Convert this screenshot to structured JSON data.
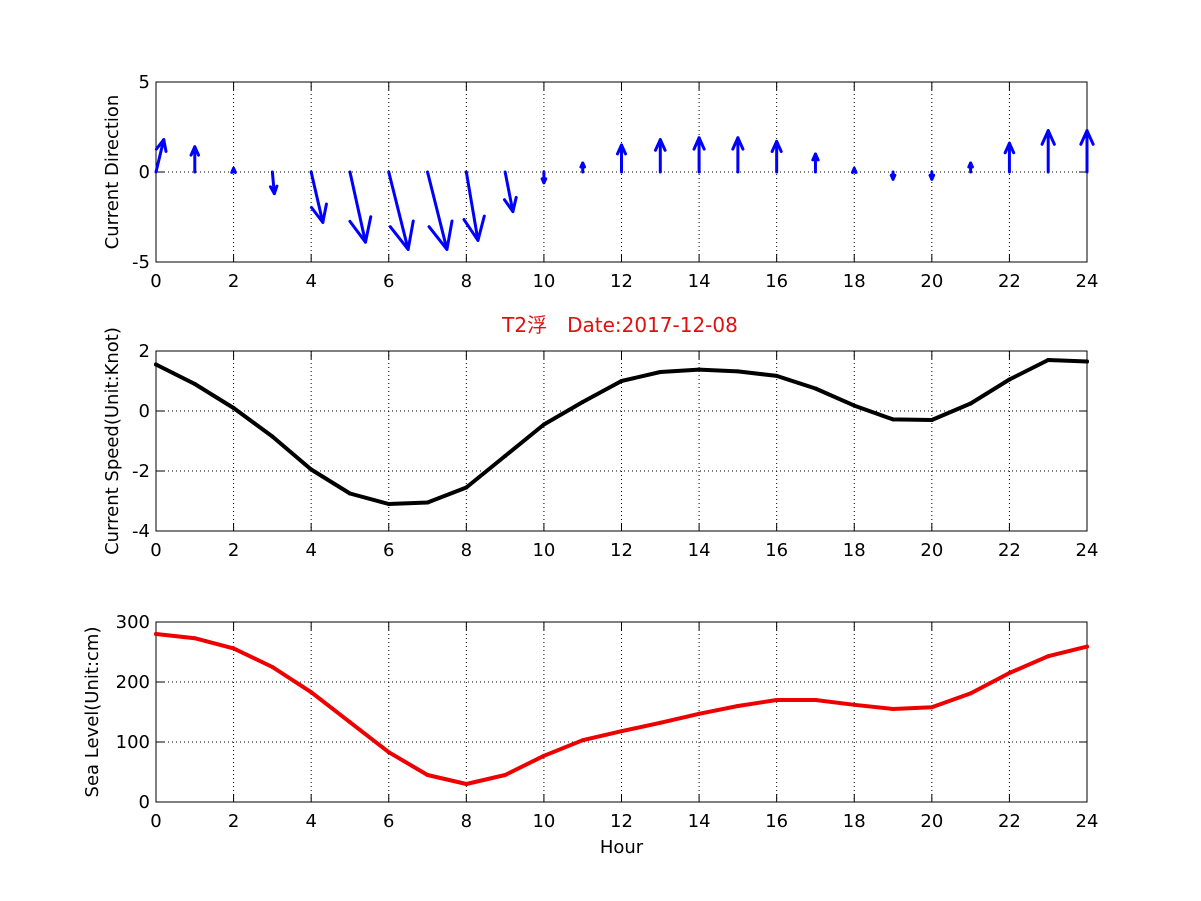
{
  "figure": {
    "title": "T2浮　Date:2017-12-08",
    "title_color": "#e01010"
  },
  "chart_data": [
    {
      "type": "quiver",
      "title": "",
      "xlabel": "",
      "ylabel": "Current Direction",
      "xlim": [
        0,
        24
      ],
      "ylim": [
        -5,
        5
      ],
      "xticks": [
        0,
        2,
        4,
        6,
        8,
        10,
        12,
        14,
        16,
        18,
        20,
        22,
        24
      ],
      "yticks": [
        -5,
        0,
        5
      ],
      "grid": true,
      "color": "#0000ff",
      "series": [
        {
          "x": [
            0,
            1,
            2,
            3,
            4,
            5,
            6,
            7,
            8,
            9,
            10,
            11,
            12,
            13,
            14,
            15,
            16,
            17,
            18,
            19,
            20,
            21,
            22,
            23,
            24
          ],
          "u": [
            0.2,
            0,
            0,
            0.05,
            0.3,
            0.4,
            0.5,
            0.5,
            0.3,
            0.2,
            0,
            0,
            0,
            0,
            0,
            0,
            0,
            0,
            0,
            0,
            0,
            0,
            0,
            0,
            0
          ],
          "v": [
            1.8,
            1.4,
            0.2,
            -1.2,
            -2.8,
            -3.9,
            -4.3,
            -4.3,
            -3.8,
            -2.2,
            -0.6,
            0.5,
            1.5,
            1.8,
            1.9,
            1.9,
            1.7,
            1.0,
            0.2,
            -0.4,
            -0.4,
            0.5,
            1.6,
            2.3,
            2.3
          ]
        }
      ]
    },
    {
      "type": "line",
      "title": "",
      "xlabel": "",
      "ylabel": "Current Speed(Unit:Knot)",
      "xlim": [
        0,
        24
      ],
      "ylim": [
        -4,
        2
      ],
      "xticks": [
        0,
        2,
        4,
        6,
        8,
        10,
        12,
        14,
        16,
        18,
        20,
        22,
        24
      ],
      "yticks": [
        -4,
        -2,
        0,
        2
      ],
      "grid": true,
      "color": "#000000",
      "series": [
        {
          "x": [
            0,
            1,
            2,
            3,
            4,
            5,
            6,
            7,
            8,
            9,
            10,
            11,
            12,
            13,
            14,
            15,
            16,
            17,
            18,
            19,
            20,
            21,
            22,
            23,
            24
          ],
          "y": [
            1.55,
            0.9,
            0.1,
            -0.85,
            -1.95,
            -2.75,
            -3.1,
            -3.05,
            -2.55,
            -1.5,
            -0.45,
            0.3,
            1.0,
            1.3,
            1.38,
            1.32,
            1.17,
            0.75,
            0.18,
            -0.28,
            -0.3,
            0.25,
            1.05,
            1.7,
            1.65
          ]
        }
      ]
    },
    {
      "type": "line",
      "title": "",
      "xlabel": "Hour",
      "ylabel": "Sea Level(Unit:cm)",
      "xlim": [
        0,
        24
      ],
      "ylim": [
        0,
        300
      ],
      "xticks": [
        0,
        2,
        4,
        6,
        8,
        10,
        12,
        14,
        16,
        18,
        20,
        22,
        24
      ],
      "yticks": [
        0,
        100,
        200,
        300
      ],
      "grid": true,
      "color": "#ee0000",
      "series": [
        {
          "x": [
            0,
            1,
            2,
            3,
            4,
            5,
            6,
            7,
            8,
            9,
            10,
            11,
            12,
            13,
            14,
            15,
            16,
            17,
            18,
            19,
            20,
            21,
            22,
            23,
            24
          ],
          "y": [
            280,
            273,
            256,
            225,
            183,
            133,
            83,
            45,
            30,
            45,
            77,
            103,
            118,
            132,
            147,
            160,
            170,
            170,
            162,
            155,
            158,
            181,
            215,
            243,
            259
          ]
        }
      ]
    }
  ]
}
